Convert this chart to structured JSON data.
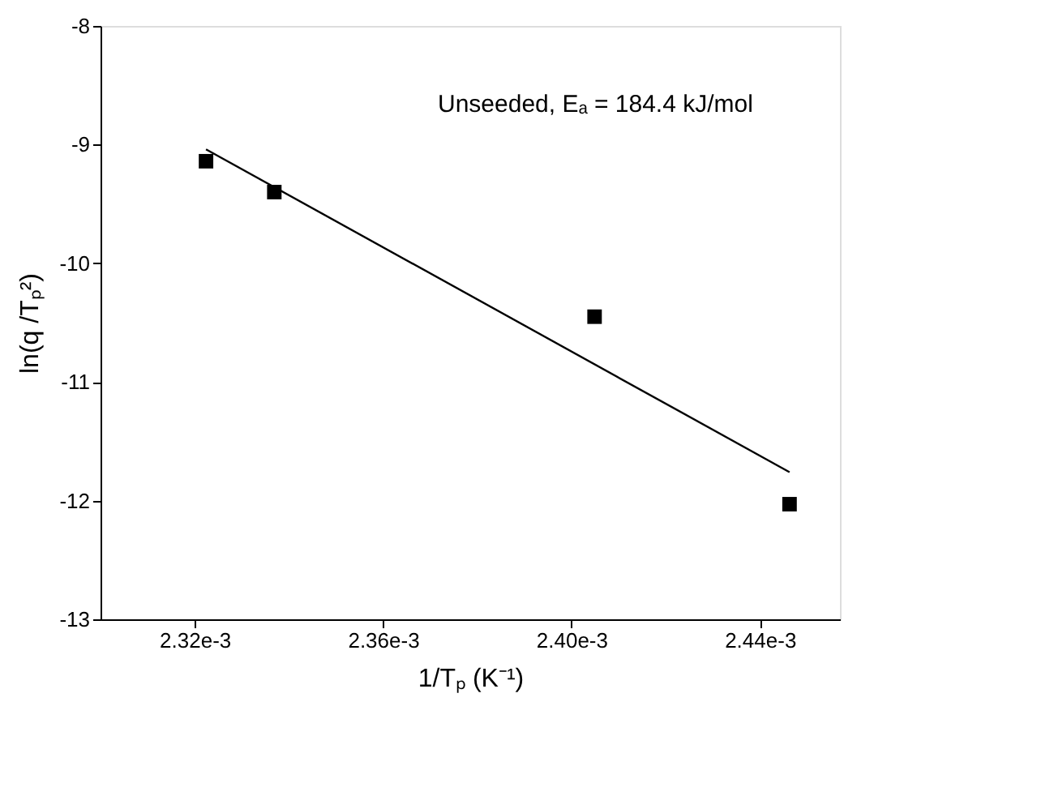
{
  "chart_data": {
    "type": "scatter",
    "xlabel": "1/Tₚ (K⁻¹)",
    "ylabel": "ln(q /Tₚ²)",
    "annotations": [
      "Unseeded, Eₐ = 184.4 kJ/mol"
    ],
    "grid": false,
    "xlim": [
      0.0023,
      0.002457
    ],
    "ylim": [
      -13,
      -8
    ],
    "xticks": [
      {
        "value": 0.00232,
        "label": "2.32e-3"
      },
      {
        "value": 0.00236,
        "label": "2.36e-3"
      },
      {
        "value": 0.0024,
        "label": "2.40e-3"
      },
      {
        "value": 0.00244,
        "label": "2.44e-3"
      }
    ],
    "yticks": [
      -13,
      -12,
      -11,
      -10,
      -9,
      -8
    ],
    "series": [
      {
        "marker": "square",
        "color": "#000000",
        "x": [
          0.0023224,
          0.0023369,
          0.0024049,
          0.0024463
        ],
        "values": [
          -9.14,
          -9.4,
          -10.45,
          -12.03
        ]
      },
      {
        "type": "line",
        "color": "#000000",
        "x": [
          0.0023224,
          0.0024463
        ],
        "values": [
          -9.04,
          -11.76
        ]
      }
    ]
  }
}
